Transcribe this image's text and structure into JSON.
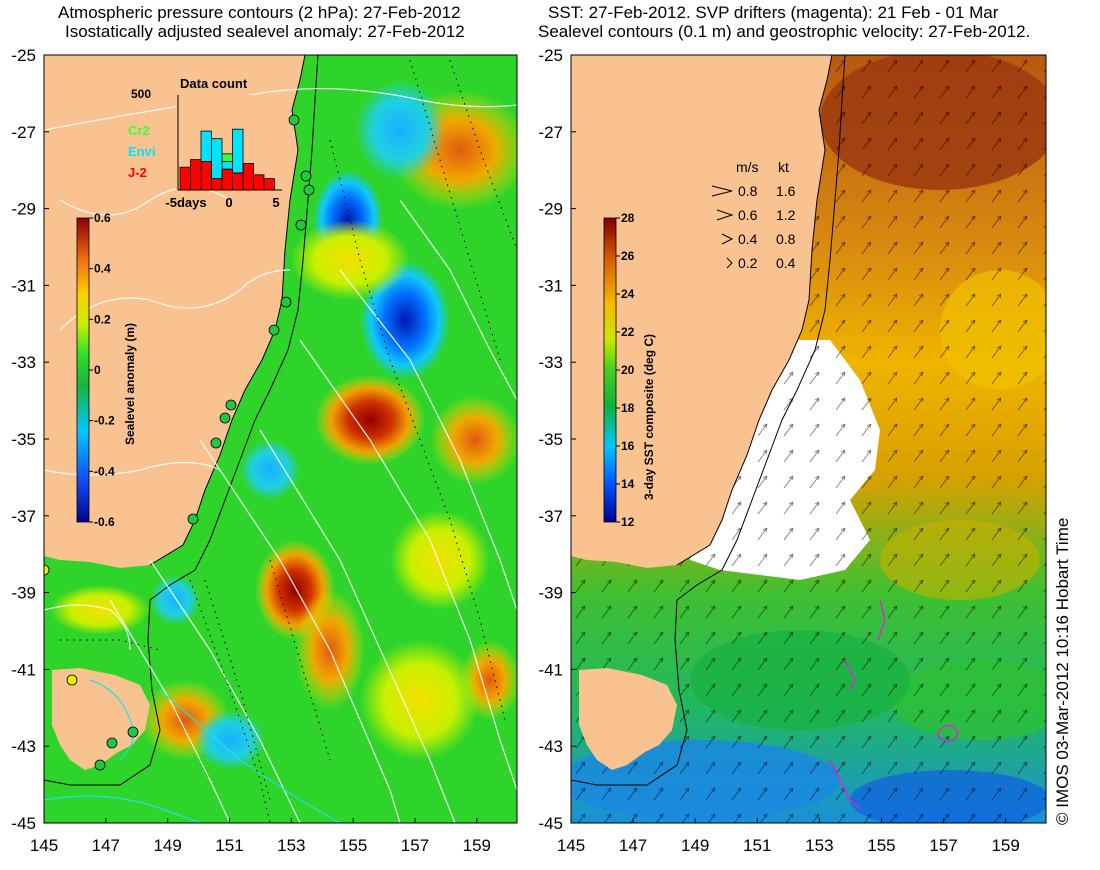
{
  "left_panel": {
    "title_line1": "Atmospheric pressure contours (2 hPa): 27-Feb-2012",
    "title_line2": "Isostatically adjusted sealevel anomaly: 27-Feb-2012",
    "lat_ticks": [
      "-25",
      "-27",
      "-29",
      "-31",
      "-33",
      "-35",
      "-37",
      "-39",
      "-41",
      "-43",
      "-45"
    ],
    "lon_ticks": [
      "145",
      "147",
      "149",
      "151",
      "153",
      "155",
      "157",
      "159"
    ],
    "colorbar": {
      "label": "Sealevel anomaly (m)",
      "ticks": [
        "0.6",
        "0.4",
        "0.2",
        "0",
        "-0.2",
        "-0.4",
        "-0.6"
      ],
      "range": [
        -0.6,
        0.6
      ]
    },
    "inset": {
      "title": "Data count",
      "ymax_label": "500",
      "xticks": [
        "-5days",
        "0",
        "5"
      ],
      "series": [
        {
          "name": "Cr2",
          "color": "#3cff3c"
        },
        {
          "name": "Envi",
          "color": "#00e5ff"
        },
        {
          "name": "J-2",
          "color": "#ff0000"
        }
      ],
      "bars": [
        {
          "day": -5,
          "J2": 120,
          "Envi": 0,
          "Cr2": 0
        },
        {
          "day": -4,
          "J2": 160,
          "Envi": 0,
          "Cr2": 0
        },
        {
          "day": -3,
          "J2": 150,
          "Envi": 160,
          "Cr2": 0
        },
        {
          "day": -2,
          "J2": 60,
          "Envi": 210,
          "Cr2": 0
        },
        {
          "day": -1,
          "J2": 110,
          "Envi": 40,
          "Cr2": 40
        },
        {
          "day": 0,
          "J2": 90,
          "Envi": 230,
          "Cr2": 0
        },
        {
          "day": 1,
          "J2": 140,
          "Envi": 0,
          "Cr2": 0
        },
        {
          "day": 2,
          "J2": 80,
          "Envi": 0,
          "Cr2": 0
        },
        {
          "day": 3,
          "J2": 60,
          "Envi": 0,
          "Cr2": 0
        }
      ]
    }
  },
  "right_panel": {
    "title_line1": "SST: 27-Feb-2012. SVP drifters (magenta): 21 Feb - 01 Mar",
    "title_line2": "Sealevel contours (0.1 m) and geostrophic velocity: 27-Feb-2012.",
    "lat_ticks": [
      "-25",
      "-27",
      "-29",
      "-31",
      "-33",
      "-35",
      "-37",
      "-39",
      "-41",
      "-43",
      "-45"
    ],
    "lon_ticks": [
      "145",
      "147",
      "149",
      "151",
      "153",
      "155",
      "157",
      "159"
    ],
    "colorbar": {
      "label": "3-day SST composite (deg C)",
      "ticks": [
        "28",
        "26",
        "24",
        "22",
        "20",
        "18",
        "16",
        "14",
        "12"
      ],
      "range": [
        12,
        28
      ]
    },
    "speed_legend": {
      "header_ms": "m/s",
      "header_kt": "kt",
      "rows": [
        {
          "ms": "0.8",
          "kt": "1.6"
        },
        {
          "ms": "0.6",
          "kt": "1.2"
        },
        {
          "ms": "0.4",
          "kt": "0.8"
        },
        {
          "ms": "0.2",
          "kt": "0.4"
        }
      ]
    }
  },
  "credit": "© IMOS 03-Mar-2012 10:16 Hobart Time",
  "colors": {
    "land": "#f9c291",
    "ocean_mid": "#22c23a"
  }
}
